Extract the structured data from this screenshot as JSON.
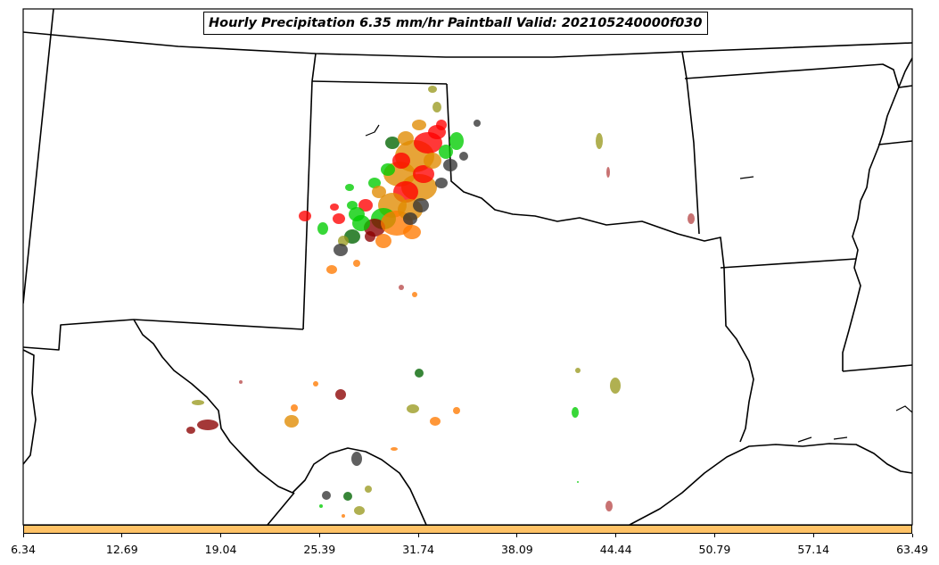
{
  "title": "Hourly Precipitation 6.35 mm/hr Paintball Valid: 202105240000f030",
  "colorbar": {
    "color": "#ffc266",
    "ticks": [
      "6.34",
      "12.69",
      "19.04",
      "25.39",
      "31.74",
      "38.09",
      "44.44",
      "50.79",
      "57.14",
      "63.49"
    ]
  },
  "paintball_colors": [
    "#ff0000",
    "#e08a00",
    "#ff7a00",
    "#00cc00",
    "#8b0000",
    "#006400",
    "#9a9a20",
    "#b84a4a",
    "#333333"
  ]
}
